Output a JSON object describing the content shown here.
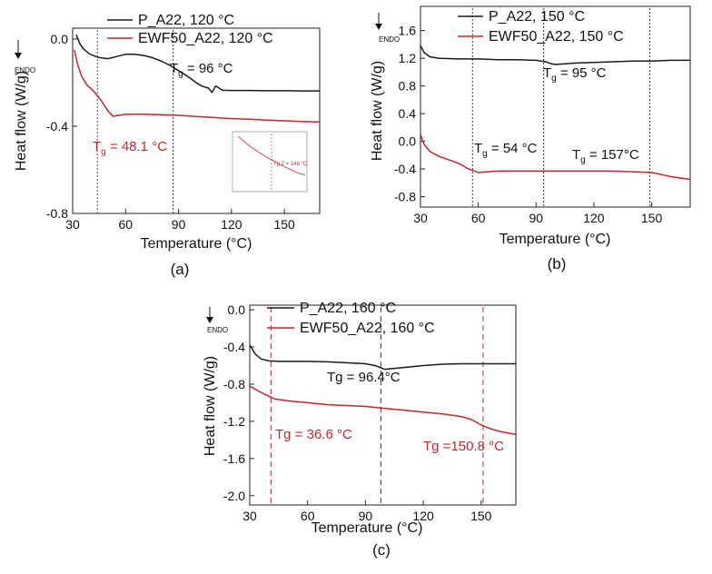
{
  "colors": {
    "black_series": "#1a1a1a",
    "red_series": "#c0282d",
    "black_ref": "#333333",
    "red_ref": "#c0282d"
  },
  "chart_data": [
    {
      "id": "a",
      "type": "line",
      "panel_label": "(a)",
      "xlabel": "Temperature (°C)",
      "ylabel": "Heat flow (W/g)",
      "endo_label": "ENDO",
      "xlim": [
        30,
        170
      ],
      "ylim": [
        -0.8,
        0.05
      ],
      "xticks": [
        30,
        60,
        90,
        120,
        150
      ],
      "yticks": [
        0.0,
        -0.4,
        -0.8
      ],
      "ytick_labels": [
        "0.0",
        "-0.4",
        "-0.8"
      ],
      "xtick_labels": [
        "30",
        "60",
        "90",
        "120",
        "150"
      ],
      "legend": [
        {
          "name": "P_A22, 120 °C",
          "color": "#1a1a1a"
        },
        {
          "name": "EWF50_A22, 120 °C",
          "color": "#c0282d"
        }
      ],
      "series": [
        {
          "name": "P_A22, 120 °C",
          "color": "#1a1a1a",
          "x": [
            32,
            34,
            36,
            40,
            45,
            50,
            55,
            60,
            65,
            70,
            75,
            80,
            85,
            90,
            95,
            100,
            103,
            105,
            107,
            109,
            111,
            113,
            115,
            120,
            130,
            140,
            150,
            160,
            170
          ],
          "y": [
            0.02,
            -0.02,
            -0.045,
            -0.07,
            -0.085,
            -0.09,
            -0.08,
            -0.07,
            -0.07,
            -0.075,
            -0.085,
            -0.1,
            -0.12,
            -0.145,
            -0.17,
            -0.2,
            -0.215,
            -0.22,
            -0.225,
            -0.245,
            -0.215,
            -0.225,
            -0.235,
            -0.236,
            -0.236,
            -0.237,
            -0.237,
            -0.238,
            -0.238
          ]
        },
        {
          "name": "EWF50_A22, 120 °C",
          "color": "#c0282d",
          "x": [
            31,
            33,
            35,
            38,
            42,
            46,
            50,
            53,
            56,
            60,
            70,
            80,
            90,
            100,
            110,
            120,
            130,
            140,
            150,
            160,
            170
          ],
          "y": [
            -0.05,
            -0.12,
            -0.17,
            -0.21,
            -0.24,
            -0.28,
            -0.33,
            -0.355,
            -0.35,
            -0.345,
            -0.345,
            -0.347,
            -0.35,
            -0.355,
            -0.36,
            -0.365,
            -0.368,
            -0.372,
            -0.375,
            -0.378,
            -0.38
          ]
        }
      ],
      "reference_lines": [
        {
          "x": 44,
          "color": "#c0282d"
        },
        {
          "x": 87,
          "color": "#333333"
        }
      ],
      "annotations": [
        {
          "sub_prefix": "T",
          "sub": "g",
          "rest": " = 96 °C",
          "color": "black"
        },
        {
          "sub_prefix": "T",
          "sub": "g",
          "rest": " = 48.1 °C",
          "color": "red"
        }
      ],
      "inset": {
        "label": "Tg 2 = 146 °C",
        "x": [
          0,
          1,
          2,
          3,
          4,
          5,
          6,
          7,
          8,
          9,
          10
        ],
        "y": [
          1.0,
          0.88,
          0.77,
          0.67,
          0.58,
          0.5,
          0.42,
          0.35,
          0.28,
          0.22,
          0.18
        ]
      }
    },
    {
      "id": "b",
      "type": "line",
      "panel_label": "(b)",
      "xlabel": "Temperature (°C)",
      "ylabel": "Heat flow (W/g)",
      "endo_label": "ENDO",
      "xlim": [
        30,
        170
      ],
      "ylim": [
        -0.95,
        1.95
      ],
      "xticks": [
        30,
        60,
        90,
        120,
        150
      ],
      "yticks": [
        1.6,
        1.2,
        0.8,
        0.4,
        0.0,
        -0.4,
        -0.8
      ],
      "ytick_labels": [
        "1.6",
        "1.2",
        "0.8",
        "0.4",
        "0.0",
        "-0.4",
        "-0.8"
      ],
      "xtick_labels": [
        "30",
        "60",
        "90",
        "120",
        "150"
      ],
      "legend": [
        {
          "name": "P_A22, 150 °C",
          "color": "#1a1a1a"
        },
        {
          "name": "EWF50_A22, 150 °C",
          "color": "#c0282d"
        }
      ],
      "series": [
        {
          "name": "P_A22, 150 °C",
          "color": "#1a1a1a",
          "x": [
            30,
            32,
            35,
            40,
            50,
            60,
            70,
            80,
            90,
            95,
            98,
            100,
            105,
            110,
            120,
            130,
            140,
            150,
            160,
            170
          ],
          "y": [
            1.38,
            1.28,
            1.22,
            1.2,
            1.19,
            1.19,
            1.18,
            1.18,
            1.17,
            1.15,
            1.12,
            1.11,
            1.12,
            1.13,
            1.14,
            1.15,
            1.16,
            1.16,
            1.17,
            1.17
          ]
        },
        {
          "name": "EWF50_A22, 150 °C",
          "color": "#c0282d",
          "x": [
            30,
            32,
            35,
            40,
            45,
            50,
            55,
            60,
            65,
            70,
            80,
            90,
            100,
            110,
            120,
            130,
            140,
            150,
            155,
            160,
            165,
            170
          ],
          "y": [
            0.1,
            -0.05,
            -0.15,
            -0.22,
            -0.27,
            -0.32,
            -0.4,
            -0.45,
            -0.44,
            -0.43,
            -0.43,
            -0.43,
            -0.43,
            -0.43,
            -0.43,
            -0.43,
            -0.44,
            -0.45,
            -0.48,
            -0.51,
            -0.53,
            -0.55
          ]
        }
      ],
      "reference_lines": [
        {
          "x": 57,
          "color": "#333333"
        },
        {
          "x": 94,
          "color": "#333333"
        },
        {
          "x": 149,
          "color": "#333333"
        }
      ],
      "annotations": [
        {
          "sub_prefix": "T",
          "sub": "g",
          "rest": " = 95 °C",
          "color": "black"
        },
        {
          "sub_prefix": "T",
          "sub": "g",
          "rest": " = 54 °C",
          "color": "black"
        },
        {
          "sub_prefix": "T",
          "sub": "g",
          "rest": " = 157°C",
          "color": "black"
        }
      ]
    },
    {
      "id": "c",
      "type": "line",
      "panel_label": "(c)",
      "xlabel": "Temperature (°C)",
      "ylabel": "Heat flow (W/g)",
      "endo_label": "ENDO",
      "xlim": [
        30,
        168
      ],
      "ylim": [
        -2.1,
        0.05
      ],
      "xticks": [
        30,
        60,
        90,
        120,
        150
      ],
      "yticks": [
        0.0,
        -0.4,
        -0.8,
        -1.2,
        -1.6,
        -2.0
      ],
      "ytick_labels": [
        "0.0",
        "-0.4",
        "-0.8",
        "-1.2",
        "-1.6",
        "-2.0"
      ],
      "xtick_labels": [
        "30",
        "60",
        "90",
        "120",
        "150"
      ],
      "legend": [
        {
          "name": "P_A22, 160 °C",
          "color": "#1a1a1a"
        },
        {
          "name": "EWF50_A22, 160 °C",
          "color": "#c0282d"
        }
      ],
      "series": [
        {
          "name": "P_A22, 160 °C",
          "color": "#1a1a1a",
          "x": [
            30,
            33,
            36,
            40,
            45,
            50,
            60,
            70,
            80,
            90,
            95,
            100,
            105,
            110,
            120,
            130,
            140,
            150,
            160,
            168
          ],
          "y": [
            -0.38,
            -0.48,
            -0.53,
            -0.55,
            -0.555,
            -0.555,
            -0.555,
            -0.56,
            -0.57,
            -0.58,
            -0.6,
            -0.64,
            -0.63,
            -0.62,
            -0.6,
            -0.585,
            -0.58,
            -0.58,
            -0.58,
            -0.58
          ]
        },
        {
          "name": "EWF50_A22, 160 °C",
          "color": "#c0282d",
          "x": [
            30,
            35,
            40,
            43,
            50,
            60,
            70,
            80,
            90,
            100,
            110,
            120,
            130,
            140,
            145,
            150,
            155,
            160,
            168
          ],
          "y": [
            -0.82,
            -0.88,
            -0.93,
            -0.96,
            -0.98,
            -1.0,
            -1.02,
            -1.03,
            -1.04,
            -1.06,
            -1.08,
            -1.1,
            -1.12,
            -1.15,
            -1.18,
            -1.24,
            -1.28,
            -1.31,
            -1.34
          ]
        }
      ],
      "reference_lines": [
        {
          "x": 41,
          "color": "#c0282d"
        },
        {
          "x": 98,
          "color": "#333333"
        },
        {
          "x": 151,
          "color": "#c0282d"
        }
      ],
      "annotations": [
        {
          "text": "Tg = 96.4°C",
          "color": "black"
        },
        {
          "text": "Tg = 36.6 °C",
          "color": "red"
        },
        {
          "text": "Tg =150.8 °C",
          "color": "red"
        }
      ]
    }
  ]
}
